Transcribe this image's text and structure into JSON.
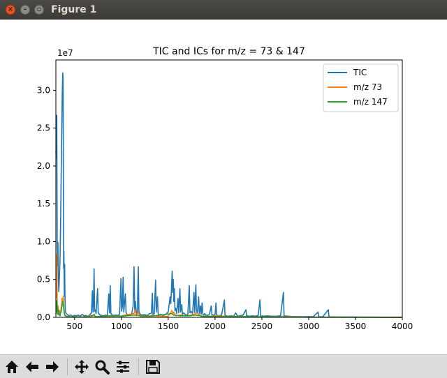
{
  "window": {
    "title": "Figure 1"
  },
  "toolbar": {
    "buttons": [
      "home-icon",
      "back-arrow-icon",
      "forward-arrow-icon",
      "pan-icon",
      "zoom-icon",
      "configure-subplots-icon",
      "save-icon"
    ]
  },
  "chart_data": {
    "type": "line",
    "title": "TIC and ICs for m/z = 73 & 147",
    "xlabel": "",
    "ylabel": "",
    "y_offset_text": "1e7",
    "xlim": [
      300,
      4000
    ],
    "ylim": [
      0,
      34000000.0
    ],
    "x_ticks": [
      500,
      1000,
      1500,
      2000,
      2500,
      3000,
      3500,
      4000
    ],
    "y_ticks": [
      0.0,
      5000000,
      10000000,
      15000000,
      20000000,
      25000000,
      30000000
    ],
    "y_tick_labels": [
      "0.0",
      "0.5",
      "1.0",
      "1.5",
      "2.0",
      "2.5",
      "3.0"
    ],
    "grid": false,
    "legend_position": "top-right",
    "series": [
      {
        "name": "TIC",
        "color": "#1f77b4",
        "points": [
          [
            300,
            22000000
          ],
          [
            305,
            21000000
          ],
          [
            310,
            26700000
          ],
          [
            314,
            9800000
          ],
          [
            318,
            6800000
          ],
          [
            322,
            9900000
          ],
          [
            327,
            5200000
          ],
          [
            331,
            3400000
          ],
          [
            336,
            4800000
          ],
          [
            340,
            6200000
          ],
          [
            345,
            7800000
          ],
          [
            350,
            12000000
          ],
          [
            356,
            18000000
          ],
          [
            362,
            24000000
          ],
          [
            368,
            29500000
          ],
          [
            373,
            32300000
          ],
          [
            377,
            31800000
          ],
          [
            380,
            20000000
          ],
          [
            383,
            6500000
          ],
          [
            386,
            8700000
          ],
          [
            390,
            2800000
          ],
          [
            394,
            7000000
          ],
          [
            397,
            3100000
          ],
          [
            401,
            900000
          ],
          [
            405,
            600000
          ],
          [
            420,
            400000
          ],
          [
            440,
            200000
          ],
          [
            460,
            300000
          ],
          [
            480,
            150000
          ],
          [
            500,
            250000
          ],
          [
            520,
            200000
          ],
          [
            540,
            300000
          ],
          [
            560,
            150000
          ],
          [
            580,
            400000
          ],
          [
            600,
            200000
          ],
          [
            620,
            250000
          ],
          [
            640,
            150000
          ],
          [
            660,
            300000
          ],
          [
            680,
            600000
          ],
          [
            690,
            3500000
          ],
          [
            696,
            700000
          ],
          [
            702,
            1800000
          ],
          [
            708,
            6400000
          ],
          [
            714,
            800000
          ],
          [
            720,
            1000000
          ],
          [
            730,
            500000
          ],
          [
            745,
            3800000
          ],
          [
            752,
            600000
          ],
          [
            770,
            300000
          ],
          [
            790,
            250000
          ],
          [
            810,
            200000
          ],
          [
            830,
            300000
          ],
          [
            850,
            200000
          ],
          [
            865,
            3100000
          ],
          [
            872,
            600000
          ],
          [
            880,
            4200000
          ],
          [
            888,
            500000
          ],
          [
            900,
            300000
          ],
          [
            920,
            250000
          ],
          [
            940,
            300000
          ],
          [
            960,
            250000
          ],
          [
            980,
            400000
          ],
          [
            995,
            5100000
          ],
          [
            1002,
            800000
          ],
          [
            1010,
            1400000
          ],
          [
            1018,
            5300000
          ],
          [
            1025,
            700000
          ],
          [
            1035,
            2100000
          ],
          [
            1042,
            3100000
          ],
          [
            1050,
            600000
          ],
          [
            1065,
            300000
          ],
          [
            1080,
            400000
          ],
          [
            1095,
            300000
          ],
          [
            1110,
            500000
          ],
          [
            1125,
            1500000
          ],
          [
            1135,
            6700000
          ],
          [
            1142,
            1000000
          ],
          [
            1150,
            2100000
          ],
          [
            1158,
            700000
          ],
          [
            1170,
            400000
          ],
          [
            1180,
            6700000
          ],
          [
            1187,
            800000
          ],
          [
            1200,
            400000
          ],
          [
            1220,
            300000
          ],
          [
            1240,
            350000
          ],
          [
            1260,
            300000
          ],
          [
            1280,
            250000
          ],
          [
            1300,
            500000
          ],
          [
            1320,
            500000
          ],
          [
            1330,
            3200000
          ],
          [
            1338,
            400000
          ],
          [
            1350,
            500000
          ],
          [
            1365,
            4900000
          ],
          [
            1372,
            700000
          ],
          [
            1385,
            2700000
          ],
          [
            1392,
            500000
          ],
          [
            1400,
            300000
          ],
          [
            1420,
            400000
          ],
          [
            1440,
            250000
          ],
          [
            1460,
            300000
          ],
          [
            1480,
            500000
          ],
          [
            1500,
            700000
          ],
          [
            1520,
            2700000
          ],
          [
            1527,
            1800000
          ],
          [
            1535,
            4000000
          ],
          [
            1542,
            6100000
          ],
          [
            1548,
            3300000
          ],
          [
            1554,
            5000000
          ],
          [
            1560,
            2100000
          ],
          [
            1566,
            3800000
          ],
          [
            1572,
            900000
          ],
          [
            1580,
            1200000
          ],
          [
            1590,
            500000
          ],
          [
            1605,
            2500000
          ],
          [
            1612,
            600000
          ],
          [
            1625,
            3800000
          ],
          [
            1632,
            700000
          ],
          [
            1645,
            1700000
          ],
          [
            1652,
            400000
          ],
          [
            1665,
            600000
          ],
          [
            1680,
            400000
          ],
          [
            1695,
            300000
          ],
          [
            1710,
            400000
          ],
          [
            1725,
            4200000
          ],
          [
            1732,
            600000
          ],
          [
            1745,
            800000
          ],
          [
            1760,
            500000
          ],
          [
            1775,
            3300000
          ],
          [
            1782,
            600000
          ],
          [
            1795,
            4300000
          ],
          [
            1802,
            900000
          ],
          [
            1812,
            600000
          ],
          [
            1825,
            2700000
          ],
          [
            1832,
            500000
          ],
          [
            1845,
            1500000
          ],
          [
            1852,
            400000
          ],
          [
            1862,
            1900000
          ],
          [
            1870,
            400000
          ],
          [
            1880,
            300000
          ],
          [
            1890,
            500000
          ],
          [
            1900,
            300000
          ],
          [
            1920,
            250000
          ],
          [
            1940,
            400000
          ],
          [
            1960,
            1500000
          ],
          [
            1967,
            300000
          ],
          [
            1990,
            300000
          ],
          [
            2000,
            400000
          ],
          [
            2010,
            1900000
          ],
          [
            2017,
            300000
          ],
          [
            2040,
            200000
          ],
          [
            2070,
            300000
          ],
          [
            2100,
            2300000
          ],
          [
            2107,
            250000
          ],
          [
            2140,
            150000
          ],
          [
            2170,
            200000
          ],
          [
            2200,
            150000
          ],
          [
            2220,
            600000
          ],
          [
            2240,
            150000
          ],
          [
            2270,
            200000
          ],
          [
            2300,
            300000
          ],
          [
            2330,
            1000000
          ],
          [
            2337,
            200000
          ],
          [
            2370,
            150000
          ],
          [
            2400,
            200000
          ],
          [
            2430,
            150000
          ],
          [
            2460,
            250000
          ],
          [
            2480,
            2300000
          ],
          [
            2487,
            200000
          ],
          [
            2520,
            150000
          ],
          [
            2560,
            200000
          ],
          [
            2600,
            150000
          ],
          [
            2650,
            150000
          ],
          [
            2700,
            200000
          ],
          [
            2730,
            3300000
          ],
          [
            2737,
            200000
          ],
          [
            2780,
            150000
          ],
          [
            2820,
            100000
          ],
          [
            2880,
            100000
          ],
          [
            2950,
            80000
          ],
          [
            3000,
            100000
          ],
          [
            3050,
            80000
          ],
          [
            3100,
            700000
          ],
          [
            3107,
            80000
          ],
          [
            3150,
            60000
          ],
          [
            3210,
            1000000
          ],
          [
            3217,
            60000
          ],
          [
            3300,
            50000
          ],
          [
            3400,
            40000
          ],
          [
            3500,
            40000
          ],
          [
            3600,
            30000
          ],
          [
            3700,
            30000
          ],
          [
            3800,
            20000
          ],
          [
            3900,
            20000
          ],
          [
            4000,
            10000
          ]
        ]
      },
      {
        "name": "m/z 73",
        "color": "#ff7f0e",
        "points": [
          [
            300,
            2500000
          ],
          [
            305,
            3000000
          ],
          [
            310,
            8300000
          ],
          [
            314,
            2000000
          ],
          [
            318,
            700000
          ],
          [
            324,
            1500000
          ],
          [
            330,
            600000
          ],
          [
            336,
            900000
          ],
          [
            342,
            500000
          ],
          [
            348,
            800000
          ],
          [
            354,
            1000000
          ],
          [
            360,
            1500000
          ],
          [
            366,
            2500000
          ],
          [
            372,
            2000000
          ],
          [
            378,
            2800000
          ],
          [
            384,
            1200000
          ],
          [
            390,
            800000
          ],
          [
            396,
            300000
          ],
          [
            410,
            150000
          ],
          [
            450,
            80000
          ],
          [
            500,
            60000
          ],
          [
            600,
            60000
          ],
          [
            700,
            300000
          ],
          [
            710,
            400000
          ],
          [
            720,
            100000
          ],
          [
            800,
            80000
          ],
          [
            900,
            150000
          ],
          [
            1000,
            200000
          ],
          [
            1040,
            300000
          ],
          [
            1135,
            500000
          ],
          [
            1145,
            1000000
          ],
          [
            1160,
            200000
          ],
          [
            1180,
            700000
          ],
          [
            1200,
            100000
          ],
          [
            1300,
            100000
          ],
          [
            1330,
            300000
          ],
          [
            1400,
            100000
          ],
          [
            1500,
            150000
          ],
          [
            1540,
            900000
          ],
          [
            1550,
            400000
          ],
          [
            1560,
            700000
          ],
          [
            1580,
            200000
          ],
          [
            1630,
            300000
          ],
          [
            1700,
            200000
          ],
          [
            1780,
            400000
          ],
          [
            1800,
            600000
          ],
          [
            1850,
            200000
          ],
          [
            1900,
            100000
          ],
          [
            2000,
            200000
          ],
          [
            2100,
            150000
          ],
          [
            2300,
            80000
          ],
          [
            2500,
            60000
          ],
          [
            2730,
            100000
          ],
          [
            3000,
            30000
          ],
          [
            3500,
            20000
          ],
          [
            4000,
            10000
          ]
        ]
      },
      {
        "name": "m/z 147",
        "color": "#2ca02c",
        "points": [
          [
            300,
            400000
          ],
          [
            305,
            800000
          ],
          [
            310,
            2200000
          ],
          [
            315,
            1100000
          ],
          [
            320,
            400000
          ],
          [
            326,
            1000000
          ],
          [
            332,
            300000
          ],
          [
            338,
            500000
          ],
          [
            344,
            200000
          ],
          [
            350,
            600000
          ],
          [
            356,
            700000
          ],
          [
            362,
            1300000
          ],
          [
            368,
            1700000
          ],
          [
            374,
            2100000
          ],
          [
            380,
            1600000
          ],
          [
            386,
            900000
          ],
          [
            392,
            400000
          ],
          [
            398,
            200000
          ],
          [
            420,
            100000
          ],
          [
            500,
            40000
          ],
          [
            600,
            40000
          ],
          [
            700,
            200000
          ],
          [
            708,
            400000
          ],
          [
            720,
            80000
          ],
          [
            880,
            200000
          ],
          [
            1000,
            150000
          ],
          [
            1140,
            300000
          ],
          [
            1180,
            250000
          ],
          [
            1330,
            150000
          ],
          [
            1360,
            200000
          ],
          [
            1540,
            500000
          ],
          [
            1555,
            300000
          ],
          [
            1625,
            200000
          ],
          [
            1725,
            200000
          ],
          [
            1795,
            300000
          ],
          [
            1860,
            150000
          ],
          [
            2010,
            100000
          ],
          [
            2100,
            100000
          ],
          [
            2480,
            80000
          ],
          [
            2730,
            60000
          ],
          [
            3000,
            20000
          ],
          [
            3500,
            15000
          ],
          [
            4000,
            10000
          ]
        ]
      }
    ]
  }
}
